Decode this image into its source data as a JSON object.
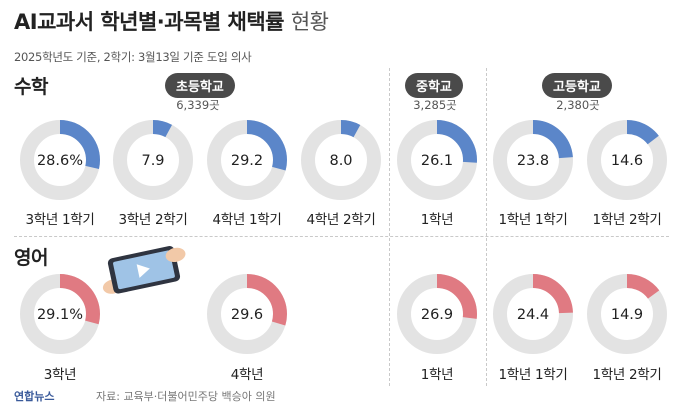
{
  "header": {
    "title_main": "AI교과서 학년별·과목별 채택률",
    "title_light": "현황",
    "subtitle": "2025학년도 기준, 2학기: 3월13일 기준 도입 의사"
  },
  "sections": {
    "math_label": "수학",
    "english_label": "영어"
  },
  "school_groups": [
    {
      "label": "초등학교",
      "count": "6,339곳"
    },
    {
      "label": "중학교",
      "count": "3,285곳"
    },
    {
      "label": "고등학교",
      "count": "2,380곳"
    }
  ],
  "colors": {
    "math": "#5b86c9",
    "english": "#e07a82",
    "track": "#e3e3e3"
  },
  "chart_data": [
    {
      "type": "pie",
      "subject": "수학",
      "categories": [
        "3학년 1학기",
        "3학년 2학기",
        "4학년 1학기",
        "4학년 2학기",
        "1학년",
        "1학년 1학기",
        "1학년 2학기"
      ],
      "values": [
        28.6,
        7.9,
        29.2,
        8.0,
        26.1,
        23.8,
        14.6
      ],
      "display": [
        "28.6%",
        "7.9",
        "29.2",
        "8.0",
        "26.1",
        "23.8",
        "14.6"
      ]
    },
    {
      "type": "pie",
      "subject": "영어",
      "categories": [
        "3학년",
        "4학년",
        "1학년",
        "1학년 1학기",
        "1학년 2학기"
      ],
      "values": [
        29.1,
        29.6,
        26.9,
        24.4,
        14.9
      ],
      "display": [
        "29.1%",
        "29.6",
        "26.9",
        "24.4",
        "14.9"
      ]
    }
  ],
  "footer": {
    "left": "연합뉴스",
    "source": "자료: 교육부·더불어민주당 백승아 의원"
  }
}
